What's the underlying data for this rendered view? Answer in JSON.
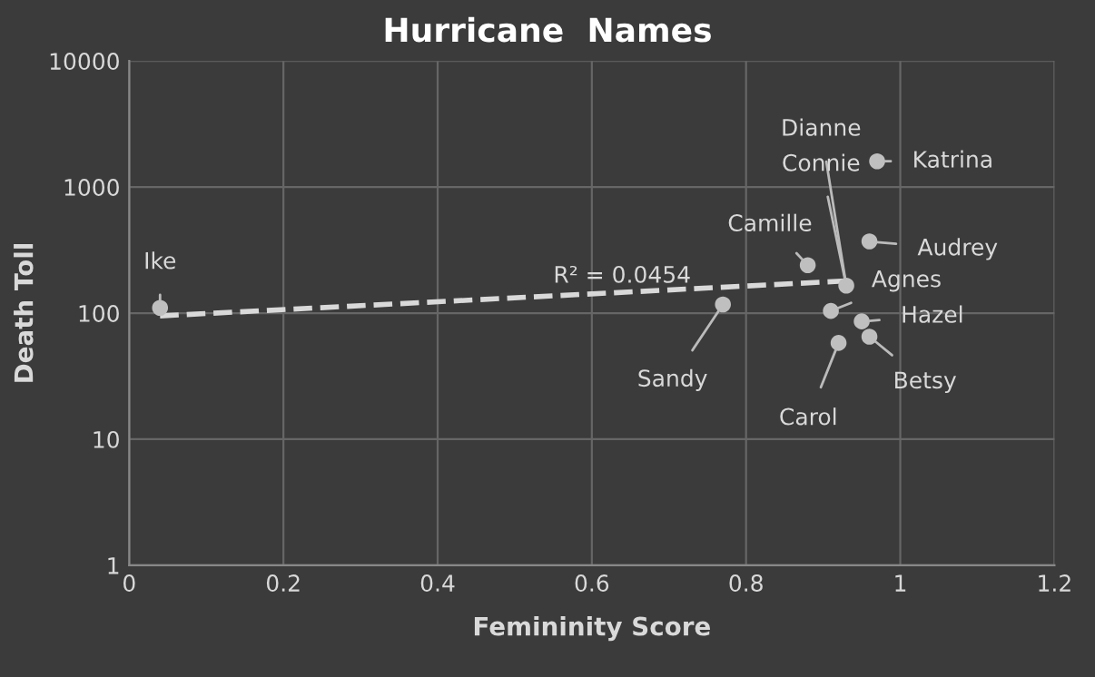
{
  "chart_data": {
    "type": "scatter",
    "title": "Hurricane  Names",
    "xlabel": "Femininity Score",
    "ylabel": "Death Toll",
    "series": [
      {
        "color": "#bfbfbf",
        "x": [
          0.04,
          0.77,
          0.88,
          0.97,
          0.96,
          0.93,
          0.91,
          0.95,
          0.96,
          0.92
        ],
        "values": [
          110,
          117,
          240,
          1600,
          370,
          165,
          104,
          86,
          65,
          58
        ],
        "marker": "circle"
      },
      {
        "type": "line",
        "color": "#d9d9d9",
        "x": [
          0.04,
          0.93
        ],
        "values": [
          95,
          180
        ],
        "line_style": "dashed",
        "marker": "none"
      }
    ],
    "annotations": [
      {
        "text": "Ike",
        "x": 0.04,
        "y": 110
      },
      {
        "text": "Sandy",
        "x": 0.77,
        "y": 117
      },
      {
        "text": "Camille",
        "x": 0.88,
        "y": 240
      },
      {
        "text": "Katrina",
        "x": 0.97,
        "y": 1600
      },
      {
        "text": "Audrey",
        "x": 0.96,
        "y": 370
      },
      {
        "text": "Dianne",
        "x": 0.93,
        "y": 165
      },
      {
        "text": "Connie",
        "x": 0.93,
        "y": 165
      },
      {
        "text": "Agnes",
        "x": 0.91,
        "y": 104
      },
      {
        "text": "Hazel",
        "x": 0.95,
        "y": 86
      },
      {
        "text": "Betsy",
        "x": 0.96,
        "y": 65
      },
      {
        "text": "Carol",
        "x": 0.92,
        "y": 58
      },
      {
        "text": "R² = 0.0454",
        "x": 0.55,
        "y": 160
      }
    ],
    "log": "y",
    "xlim": [
      0,
      1.2
    ],
    "xticks": [
      0,
      0.2,
      0.4,
      0.6,
      0.8,
      1,
      1.2
    ],
    "ylim": [
      1,
      10000
    ],
    "yticks": [
      1,
      10,
      100,
      1000,
      10000
    ],
    "grid": true,
    "legend": false
  }
}
